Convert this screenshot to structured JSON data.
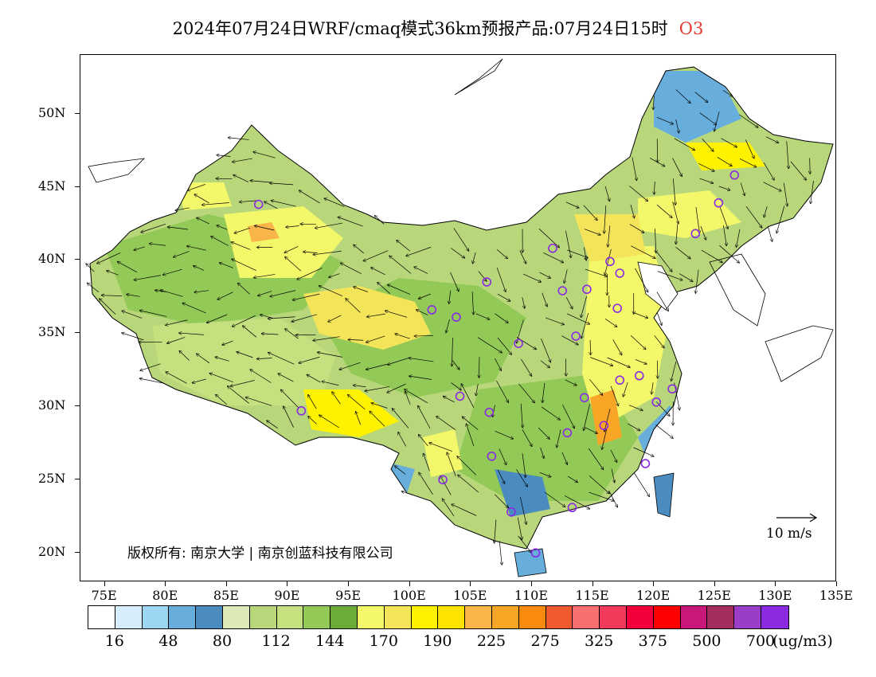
{
  "title": {
    "main": "2024年07月24日WRF/cmaq模式36km预报产品:07月24日15时",
    "species": "O3"
  },
  "colors": {
    "title_species": "#e8392f",
    "station_marker": "#8a2be2",
    "coast": "#000000"
  },
  "map": {
    "lat_ticks": [
      "20N",
      "25N",
      "30N",
      "35N",
      "40N",
      "45N",
      "50N"
    ],
    "lon_ticks": [
      "75E",
      "80E",
      "85E",
      "90E",
      "95E",
      "100E",
      "105E",
      "110E",
      "115E",
      "120E",
      "125E",
      "130E",
      "135E"
    ],
    "copyright": "版权所有: 南京大学 | 南京创蓝科技有限公司",
    "wind_reference": "10 m/s"
  },
  "legend": {
    "unit": "(ug/m3)",
    "labels": [
      "16",
      "48",
      "80",
      "112",
      "144",
      "170",
      "190",
      "225",
      "275",
      "325",
      "375",
      "500",
      "700"
    ],
    "colors": [
      "#ffffff",
      "#d6eefb",
      "#9dd6f3",
      "#68aedc",
      "#4a8cc0",
      "#dde9b7",
      "#b8d67a",
      "#c4e07f",
      "#93c957",
      "#6aab3a",
      "#f3f76a",
      "#f4e45a",
      "#fff200",
      "#ffe300",
      "#f9b44a",
      "#f9a627",
      "#f88a0e",
      "#ef5a2f",
      "#f86f6f",
      "#f43a5a",
      "#f2003c",
      "#ff0000",
      "#c8197a",
      "#a52c5e",
      "#9a3ec8",
      "#8a2be2"
    ]
  },
  "stations": [
    {
      "lon": 87.6,
      "lat": 43.8
    },
    {
      "lon": 91.1,
      "lat": 29.7
    },
    {
      "lon": 101.8,
      "lat": 36.6
    },
    {
      "lon": 103.8,
      "lat": 36.1
    },
    {
      "lon": 104.1,
      "lat": 30.7
    },
    {
      "lon": 106.3,
      "lat": 38.5
    },
    {
      "lon": 106.5,
      "lat": 29.6
    },
    {
      "lon": 106.7,
      "lat": 26.6
    },
    {
      "lon": 102.7,
      "lat": 25.0
    },
    {
      "lon": 108.9,
      "lat": 34.3
    },
    {
      "lon": 108.3,
      "lat": 22.8
    },
    {
      "lon": 110.3,
      "lat": 20.0
    },
    {
      "lon": 111.7,
      "lat": 40.8
    },
    {
      "lon": 112.5,
      "lat": 37.9
    },
    {
      "lon": 113.6,
      "lat": 34.8
    },
    {
      "lon": 114.5,
      "lat": 38.0
    },
    {
      "lon": 114.3,
      "lat": 30.6
    },
    {
      "lon": 112.9,
      "lat": 28.2
    },
    {
      "lon": 113.3,
      "lat": 23.1
    },
    {
      "lon": 115.9,
      "lat": 28.7
    },
    {
      "lon": 117.2,
      "lat": 31.8
    },
    {
      "lon": 116.4,
      "lat": 39.9
    },
    {
      "lon": 117.2,
      "lat": 39.1
    },
    {
      "lon": 117.0,
      "lat": 36.7
    },
    {
      "lon": 118.8,
      "lat": 32.1
    },
    {
      "lon": 120.2,
      "lat": 30.3
    },
    {
      "lon": 121.5,
      "lat": 31.2
    },
    {
      "lon": 119.3,
      "lat": 26.1
    },
    {
      "lon": 123.4,
      "lat": 41.8
    },
    {
      "lon": 125.3,
      "lat": 43.9
    },
    {
      "lon": 126.6,
      "lat": 45.8
    }
  ]
}
